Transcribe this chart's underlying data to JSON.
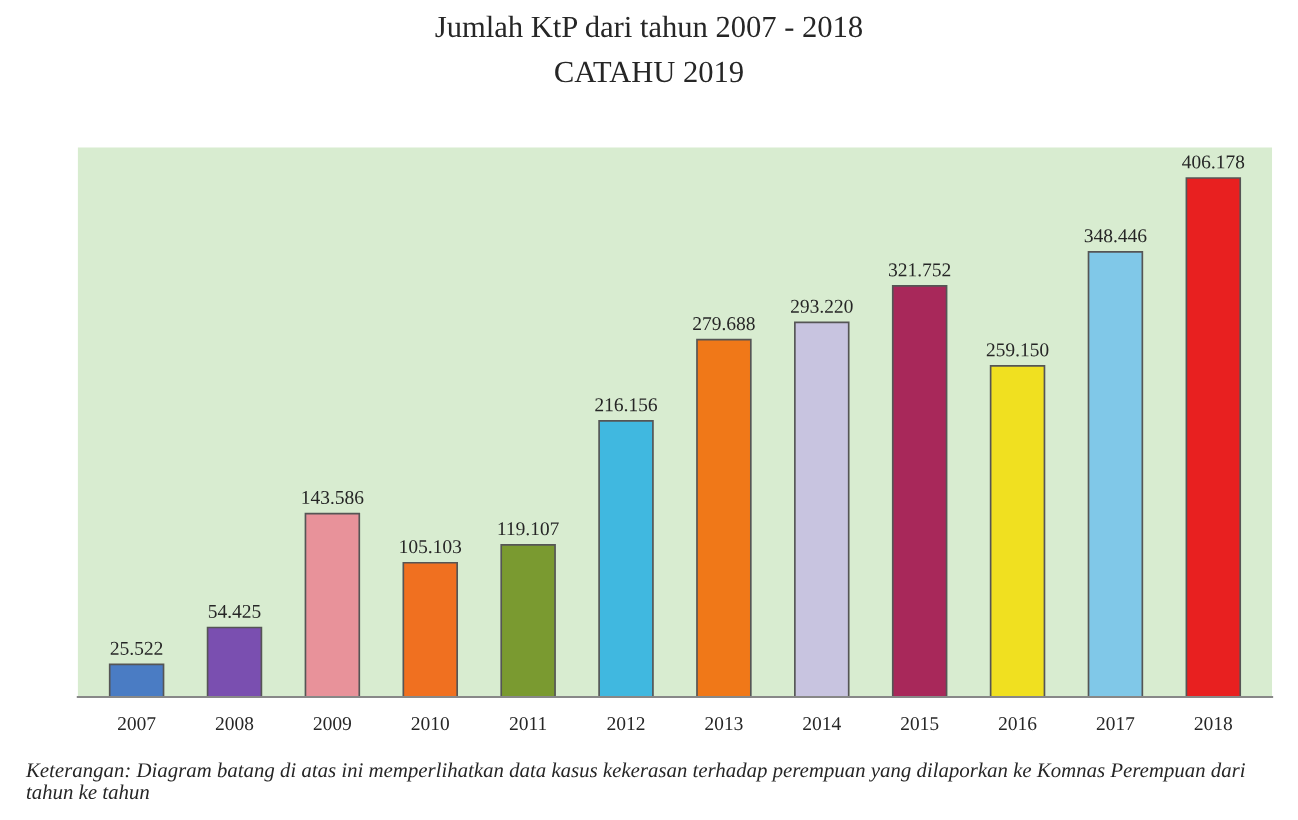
{
  "chart_data": {
    "type": "bar",
    "title": "Jumlah KtP dari tahun 2007 - 2018",
    "subtitle": "CATAHU 2019",
    "categories": [
      "2007",
      "2008",
      "2009",
      "2010",
      "2011",
      "2012",
      "2013",
      "2014",
      "2015",
      "2016",
      "2017",
      "2018"
    ],
    "values": [
      25522,
      54425,
      143586,
      105103,
      119107,
      216156,
      279688,
      293220,
      321752,
      259150,
      348446,
      406178
    ],
    "value_labels": [
      "25.522",
      "54.425",
      "143.586",
      "105.103",
      "119.107",
      "216.156",
      "279.688",
      "293.220",
      "321.752",
      "259.150",
      "348.446",
      "406.178"
    ],
    "colors": [
      "#4a7cc4",
      "#7a4fb0",
      "#e8929a",
      "#f07020",
      "#7a9a30",
      "#40b8e0",
      "#f07818",
      "#c8c4e0",
      "#a8285a",
      "#f0e020",
      "#80c8e8",
      "#e82020"
    ],
    "ylim": [
      0,
      430000
    ],
    "tick_labels": "x",
    "grid": false,
    "annotations": [
      "Keterangan: Diagram batang di atas ini memperlihatkan data kasus kekerasan terhadap perempuan yang dilaporkan ke Komnas Perempuan dari tahun ke tahun"
    ]
  }
}
